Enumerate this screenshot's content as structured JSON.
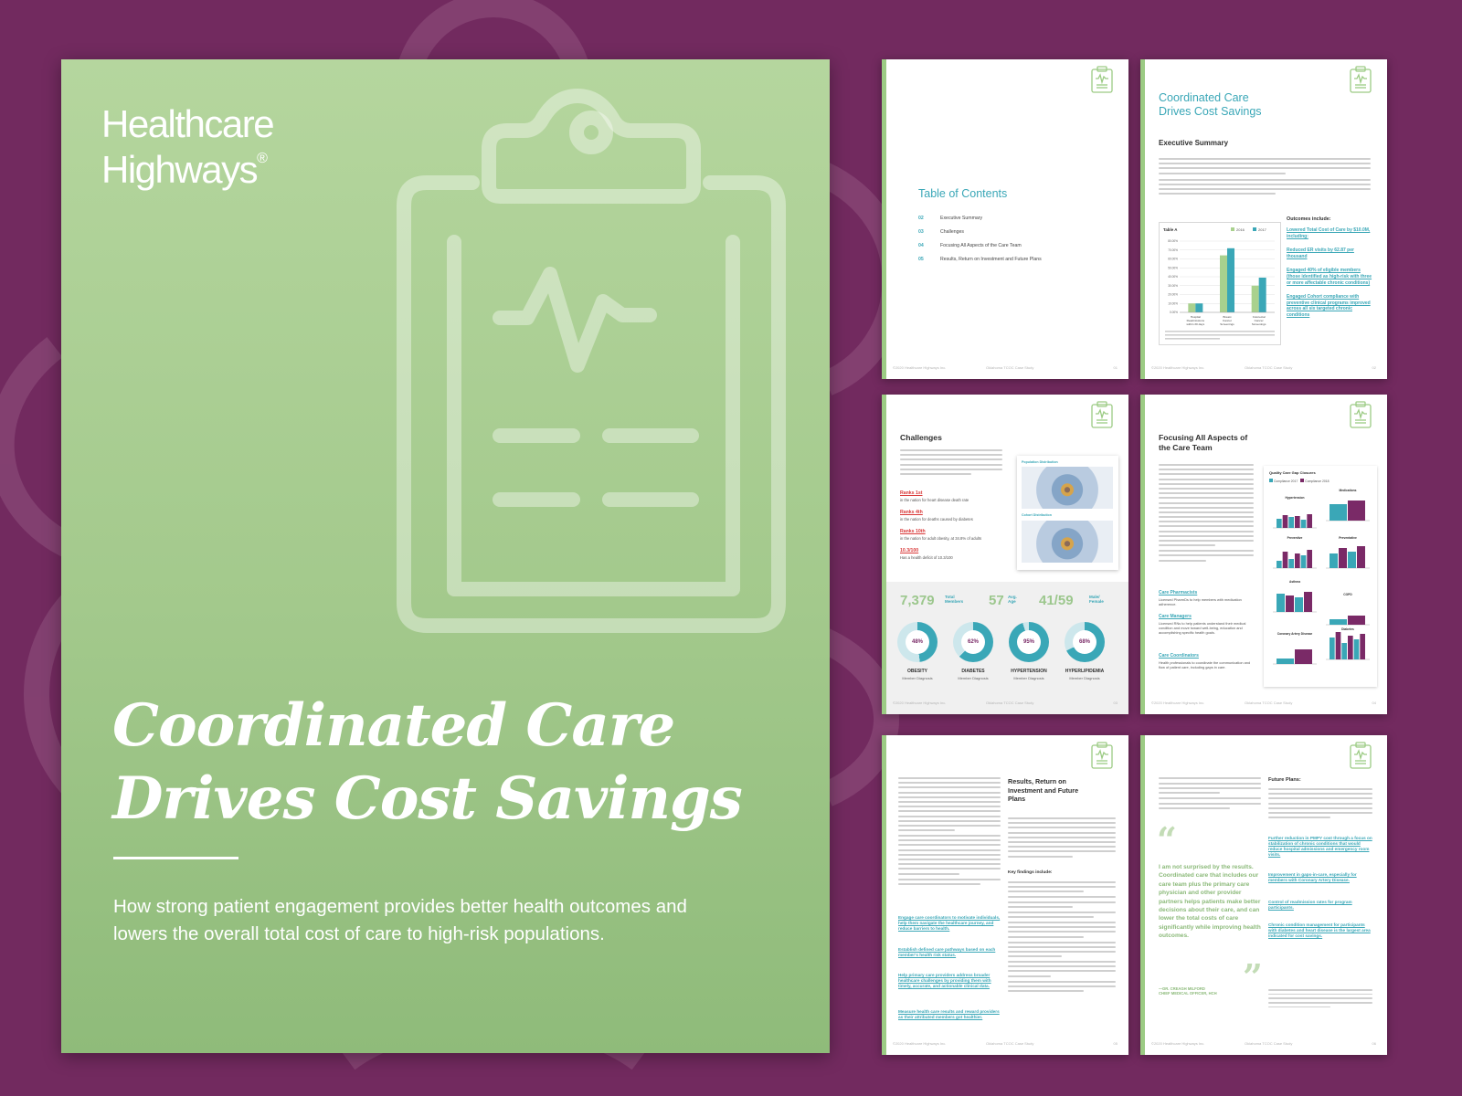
{
  "colors": {
    "background": "#722a5f",
    "cover_green": "#a8cc93",
    "teal": "#3aa7b7",
    "purple": "#7a2a67",
    "light_green": "#9ccb84"
  },
  "cover": {
    "logo_line1": "Healthcare",
    "logo_line2": "Highways",
    "logo_mark": "®",
    "icon": "clipboard-heartbeat-icon",
    "title_line1": "Coordinated Care",
    "title_line2": "Drives Cost Savings",
    "subtitle": "How strong patient engagement provides better health outcomes and lowers the overall total cost of care to high-risk populations."
  },
  "footer": {
    "left": "©2020 Healthcare Highways Inc.",
    "middle": "Oklahoma TCOC Case Study"
  },
  "page1": {
    "toc_title": "Table of Contents",
    "items": [
      {
        "num": "02",
        "label": "Executive Summary"
      },
      {
        "num": "03",
        "label": "Challenges"
      },
      {
        "num": "04",
        "label": "Focusing All Aspects of the Care Team"
      },
      {
        "num": "05",
        "label": "Results, Return on Investment and Future Plans"
      }
    ],
    "page_num": "01"
  },
  "page2": {
    "title_line1": "Coordinated Care",
    "title_line2": "Drives Cost Savings",
    "heading": "Executive Summary",
    "outcomes_heading": "Outcomes include:",
    "outcomes": [
      "Lowered Total Cost of Care by $10.0M, including:",
      "Reduced ER visits by 62.87 per thousand",
      "Engaged 40% of eligible members (those identified as high-risk with three or more affectable chronic conditions)",
      "Engaged Cohort compliance with preventive clinical programs improved across all six targeted chronic conditions"
    ],
    "page_num": "02"
  },
  "chart_data": {
    "type": "bar",
    "title": "Table A",
    "categories": [
      "Hospital Readmissions within 30 days",
      "Breast Cancer Screenings",
      "Colorectal Cancer Screenings"
    ],
    "series": [
      {
        "name": "2016",
        "values": [
          10.0,
          64.0,
          30.0
        ]
      },
      {
        "name": "2017",
        "values": [
          10.0,
          72.0,
          39.0
        ]
      }
    ],
    "ylim": [
      0,
      80
    ],
    "y_ticks": [
      "80.00%",
      "70.00%",
      "60.00%",
      "50.00%",
      "40.00%",
      "30.00%",
      "20.00%",
      "10.00%",
      "0.00%"
    ],
    "grid": true,
    "legend": "top-right",
    "series_colors": [
      "#a9d18e",
      "#3aa7b7"
    ]
  },
  "page3": {
    "heading": "Challenges",
    "ranks": [
      {
        "title": "Ranks 1st",
        "desc": "in the nation for heart disease death rate"
      },
      {
        "title": "Ranks 4th",
        "desc": "in the nation for deaths caused by diabetes"
      },
      {
        "title": "Ranks 10th",
        "desc": "in the nation for adult obesity, at 34.8% of adults"
      },
      {
        "title": "10.3/100",
        "desc": "Has a health deficit of 10.3/100"
      }
    ],
    "map1_label": "Population Distribution",
    "map2_label": "Cohort Distribution",
    "stats": [
      {
        "value": "7,379",
        "label_line1": "Total",
        "label_line2": "Members"
      },
      {
        "value": "57",
        "label_line1": "Avg.",
        "label_line2": "Age"
      },
      {
        "value": "41/59",
        "label_line1": "Male/",
        "label_line2": "Female"
      }
    ],
    "donuts": [
      {
        "pct": "48%",
        "percent": 48,
        "name": "OBESITY",
        "sub": "Member Diagnosis"
      },
      {
        "pct": "62%",
        "percent": 62,
        "name": "DIABETES",
        "sub": "Member Diagnosis"
      },
      {
        "pct": "95%",
        "percent": 95,
        "name": "HYPERTENSION",
        "sub": "Member Diagnosis"
      },
      {
        "pct": "68%",
        "percent": 68,
        "name": "HYPERLIPIDEMIA",
        "sub": "Member Diagnosis"
      }
    ],
    "page_num": "03"
  },
  "page4": {
    "heading_line1": "Focusing All Aspects of",
    "heading_line2": "the Care Team",
    "gap_title": "Quality Care Gap Closures",
    "legend_2017": "Compliance 2017",
    "legend_2018": "Compliance 2018",
    "panels": [
      "Hypertension",
      "Medications",
      "Preventive",
      "Preventative",
      "Asthma",
      "COPD",
      "Coronary Artery Disease",
      "Diabetes"
    ],
    "roles": [
      {
        "title": "Care Pharmacists",
        "desc": "Licensed PharmDs to help members with medication adherence."
      },
      {
        "title": "Care Managers",
        "desc": "Licensed RNs to help patients understand their medical condition and move toward well-being, education and accomplishing specific health goals."
      },
      {
        "title": "Care Coordinators",
        "desc": "Health professionals to coordinate the communication and flow of patient care, including gaps in care."
      }
    ],
    "page_num": "04"
  },
  "page5": {
    "heading_line1": "Results, Return on",
    "heading_line2": "Investment and Future",
    "heading_line3": "Plans",
    "key_findings": "Key findings include:",
    "links": [
      "Engage care coordinators to motivate individuals, help them navigate the healthcare journey, and reduce barriers to health.",
      "Establish defined care pathways based on each member's health risk status.",
      "Help primary care providers address broader healthcare challenges by providing them with timely, accurate, and actionable clinical data.",
      "Measure health care results and reward providers as their attributed members got healthier."
    ],
    "page_num": "05"
  },
  "page6": {
    "quote": "I am not surprised by the results. Coordinated care that includes our care team plus the primary care physician and other provider partners helps patients make better decisions about their care, and can lower the total costs of care significantly while improving health outcomes.",
    "quote_by_line1": "—DR. CREAGH MILFORD",
    "quote_by_line2": "CHIEF MEDICAL OFFICER, HCH",
    "future_heading": "Future Plans:",
    "future_links": [
      "Further reduction in PMPY cost through a focus on stabilization of chronic conditions that would reduce hospital admissions and emergency room visits.",
      "Improvement in gaps-in-care, especially for members with Coronary Artery Disease.",
      "Control of readmission rates for program participants.",
      "Chronic condition management for participants with diabetes and heart disease is the largest area indicated for cost savings."
    ],
    "page_num": "06"
  }
}
